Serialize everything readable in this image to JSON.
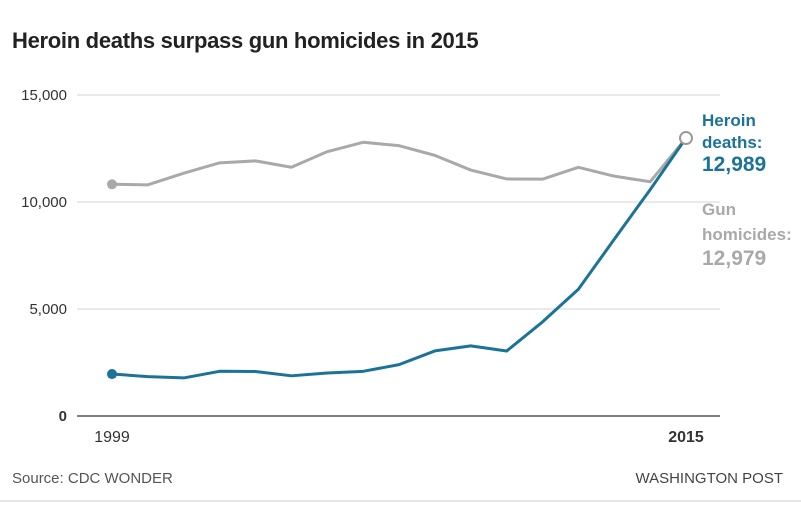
{
  "chart_data": {
    "type": "line",
    "title": "Heroin deaths surpass gun homicides in 2015",
    "x": [
      1999,
      2000,
      2001,
      2002,
      2003,
      2004,
      2005,
      2006,
      2007,
      2008,
      2009,
      2010,
      2011,
      2012,
      2013,
      2014,
      2015
    ],
    "x_tick_labels": [
      "1999",
      "2015"
    ],
    "y_tick_labels": [
      "0",
      "5,000",
      "10,000",
      "15,000"
    ],
    "yticks": [
      0,
      5000,
      10000,
      15000
    ],
    "ylim": [
      0,
      15000
    ],
    "grid": true,
    "series": [
      {
        "name": "Gun homicides",
        "color": "#a9a9a9",
        "values": [
          10828,
          10801,
          11348,
          11829,
          11920,
          11624,
          12352,
          12791,
          12632,
          12179,
          11493,
          11078,
          11068,
          11622,
          11208,
          10945,
          12979
        ]
      },
      {
        "name": "Heroin deaths",
        "color": "#1b7398",
        "values": [
          1960,
          1842,
          1779,
          2089,
          2080,
          1878,
          2009,
          2088,
          2399,
          3041,
          3278,
          3036,
          4397,
          5925,
          8257,
          10574,
          12989
        ]
      }
    ],
    "annotations": {
      "heroin_label_1": "Heroin",
      "heroin_label_2": "deaths:",
      "heroin_value": "12,989",
      "gun_label_1": "Gun",
      "gun_label_2": "homicides:",
      "gun_value": "12,979"
    }
  },
  "footer": {
    "source": "Source: CDC WONDER",
    "credit": "WASHINGTON POST"
  }
}
